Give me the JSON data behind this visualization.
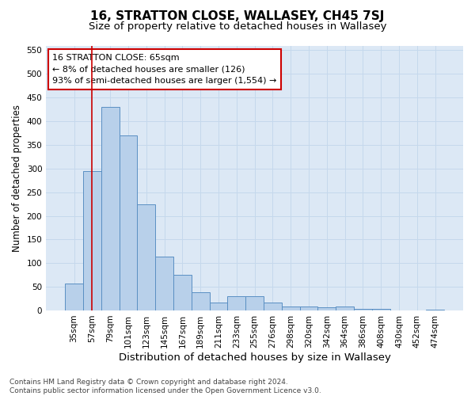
{
  "title": "16, STRATTON CLOSE, WALLASEY, CH45 7SJ",
  "subtitle": "Size of property relative to detached houses in Wallasey",
  "xlabel_bottom": "Distribution of detached houses by size in Wallasey",
  "ylabel": "Number of detached properties",
  "categories": [
    "35sqm",
    "57sqm",
    "79sqm",
    "101sqm",
    "123sqm",
    "145sqm",
    "167sqm",
    "189sqm",
    "211sqm",
    "233sqm",
    "255sqm",
    "276sqm",
    "298sqm",
    "320sqm",
    "342sqm",
    "364sqm",
    "386sqm",
    "408sqm",
    "430sqm",
    "452sqm",
    "474sqm"
  ],
  "values": [
    57,
    295,
    430,
    370,
    225,
    113,
    76,
    38,
    17,
    30,
    30,
    16,
    8,
    9,
    6,
    9,
    4,
    4,
    0,
    0,
    2
  ],
  "bar_color": "#b8d0ea",
  "bar_edge_color": "#5a8fc3",
  "vline_x": 1,
  "vline_color": "#cc0000",
  "annotation_text": "16 STRATTON CLOSE: 65sqm\n← 8% of detached houses are smaller (126)\n93% of semi-detached houses are larger (1,554) →",
  "annotation_box_facecolor": "#ffffff",
  "annotation_box_edgecolor": "#cc0000",
  "ylim": [
    0,
    560
  ],
  "yticks": [
    0,
    50,
    100,
    150,
    200,
    250,
    300,
    350,
    400,
    450,
    500,
    550
  ],
  "grid_color": "#c5d8ec",
  "background_color": "#dce8f5",
  "footer_text": "Contains HM Land Registry data © Crown copyright and database right 2024.\nContains public sector information licensed under the Open Government Licence v3.0.",
  "title_fontsize": 11,
  "subtitle_fontsize": 9.5,
  "ylabel_fontsize": 8.5,
  "xlabel_fontsize": 9.5,
  "tick_fontsize": 7.5,
  "annotation_fontsize": 8,
  "footer_fontsize": 6.5
}
